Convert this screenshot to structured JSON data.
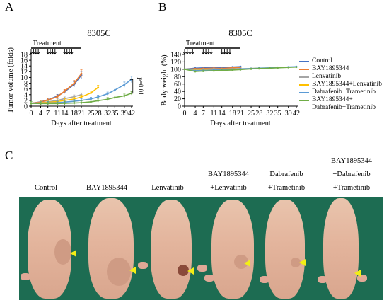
{
  "panels": {
    "a_letter": "A",
    "b_letter": "B",
    "c_letter": "C"
  },
  "chart_data": [
    {
      "type": "line",
      "title": "8305C",
      "xlabel": "Days after treatment",
      "ylabel": "Tumor volume (folds)",
      "ylim": [
        0,
        18
      ],
      "yticks": [
        0,
        2,
        4,
        6,
        8,
        10,
        12,
        14,
        16,
        18
      ],
      "xticks": [
        0,
        4,
        7,
        11,
        14,
        18,
        21,
        25,
        28,
        32,
        35,
        39,
        42
      ],
      "treatment_label": "Treatment",
      "treatment_days": [
        0,
        21
      ],
      "dosing_arrows": [
        "0",
        "1",
        "2",
        "3",
        "7",
        "8",
        "9",
        "10",
        "14",
        "15",
        "16",
        "17"
      ],
      "annotation": "p=0.01",
      "series": [
        {
          "name": "Control",
          "color": "#4472c4",
          "x": [
            0,
            4,
            7,
            11,
            14,
            18,
            21
          ],
          "y": [
            1.0,
            1.5,
            2.2,
            3.5,
            5.0,
            7.6,
            10.8
          ]
        },
        {
          "name": "BAY1895344",
          "color": "#ed7d31",
          "x": [
            0,
            4,
            7,
            11,
            14,
            18,
            21
          ],
          "y": [
            1.0,
            1.4,
            2.1,
            3.3,
            5.2,
            8.0,
            11.3
          ]
        },
        {
          "name": "Lenvatinib",
          "color": "#a5a5a5",
          "x": [
            0,
            4,
            7,
            11,
            14,
            18,
            21
          ],
          "y": [
            1.0,
            1.2,
            1.5,
            2.0,
            2.6,
            3.3,
            4.0
          ]
        },
        {
          "name": "BAY1895344+Lenvatinib",
          "color": "#ffc000",
          "x": [
            0,
            4,
            7,
            11,
            14,
            18,
            21,
            25,
            28
          ],
          "y": [
            1.0,
            1.1,
            1.3,
            1.6,
            2.0,
            2.5,
            3.2,
            4.6,
            6.5
          ]
        },
        {
          "name": "Dabrafenib+Trametinib",
          "color": "#5b9bd5",
          "x": [
            0,
            4,
            7,
            11,
            14,
            18,
            21,
            25,
            28,
            32,
            35,
            39,
            42
          ],
          "y": [
            1.0,
            1.0,
            1.1,
            1.2,
            1.4,
            1.7,
            2.0,
            2.5,
            3.2,
            4.3,
            5.6,
            7.5,
            9.3
          ]
        },
        {
          "name": "BAY1895344+ Dabrafenib+Trametinib",
          "color": "#70ad47",
          "x": [
            0,
            4,
            7,
            11,
            14,
            18,
            21,
            25,
            28,
            32,
            35,
            39,
            42
          ],
          "y": [
            1.0,
            0.9,
            0.9,
            0.9,
            1.0,
            1.1,
            1.2,
            1.5,
            1.9,
            2.4,
            3.0,
            3.6,
            4.5
          ]
        }
      ]
    },
    {
      "type": "line",
      "title": "8305C",
      "xlabel": "Days after treatment",
      "ylabel": "Body weight (%)",
      "ylim": [
        0,
        140
      ],
      "yticks": [
        0,
        20,
        40,
        60,
        80,
        100,
        120,
        140
      ],
      "xticks": [
        0,
        4,
        7,
        11,
        14,
        18,
        21,
        25,
        28,
        32,
        35,
        39,
        42
      ],
      "treatment_label": "Treatment",
      "treatment_days": [
        0,
        21
      ],
      "dosing_arrows": [
        "0",
        "1",
        "2",
        "3",
        "7",
        "8",
        "9",
        "10",
        "14",
        "15",
        "16",
        "17"
      ],
      "legend_position": "right",
      "series": [
        {
          "name": "Control",
          "color": "#4472c4",
          "x": [
            0,
            4,
            7,
            11,
            14,
            18,
            21
          ],
          "y": [
            100,
            103,
            104,
            105,
            104,
            106,
            107
          ]
        },
        {
          "name": "BAY1895344",
          "color": "#ed7d31",
          "x": [
            0,
            4,
            7,
            11,
            14,
            18,
            21
          ],
          "y": [
            100,
            101,
            102,
            103,
            102,
            104,
            105
          ]
        },
        {
          "name": "Lenvatinib",
          "color": "#a5a5a5",
          "x": [
            0,
            4,
            7,
            11,
            14,
            18,
            21
          ],
          "y": [
            100,
            99,
            100,
            101,
            100,
            101,
            102
          ]
        },
        {
          "name": "BAY1895344+Lenvatinib",
          "color": "#ffc000",
          "x": [
            0,
            4,
            7,
            11,
            14,
            18,
            21,
            25,
            28
          ],
          "y": [
            100,
            97,
            98,
            99,
            99,
            100,
            101,
            102,
            103
          ]
        },
        {
          "name": "Dabrafenib+Trametinib",
          "color": "#5b9bd5",
          "x": [
            0,
            4,
            7,
            11,
            14,
            18,
            21,
            25,
            28,
            32,
            35,
            39,
            42
          ],
          "y": [
            100,
            96,
            97,
            98,
            99,
            100,
            101,
            102,
            103,
            104,
            105,
            106,
            107
          ]
        },
        {
          "name": "BAY1895344+ Dabrafenib+Trametinib",
          "color": "#70ad47",
          "x": [
            0,
            4,
            7,
            11,
            14,
            18,
            21,
            25,
            28,
            32,
            35,
            39,
            42
          ],
          "y": [
            100,
            94,
            95,
            96,
            97,
            98,
            99,
            101,
            102,
            103,
            104,
            105,
            106
          ]
        }
      ]
    }
  ],
  "legend": {
    "items": [
      {
        "label": "Control",
        "color": "#4472c4"
      },
      {
        "label": "BAY1895344",
        "color": "#ed7d31"
      },
      {
        "label": "Lenvatinib",
        "color": "#a5a5a5"
      },
      {
        "label": "BAY1895344+Lenvatinib",
        "color": "#ffc000"
      },
      {
        "label": "Dabrafenib+Trametinib",
        "color": "#5b9bd5"
      },
      {
        "label": "BAY1895344+",
        "label2": "Dabrafenib+Trametinib",
        "color": "#70ad47"
      }
    ]
  },
  "photo_panel": {
    "labels": [
      {
        "lines": [
          "Control"
        ]
      },
      {
        "lines": [
          "BAY1895344"
        ]
      },
      {
        "lines": [
          "Lenvatinib"
        ]
      },
      {
        "lines": [
          "BAY1895344",
          "+Lenvatinib"
        ]
      },
      {
        "lines": [
          "Dabrafenib",
          "+Trametinib"
        ]
      },
      {
        "lines": [
          "BAY1895344",
          "+Dabrafenib",
          "+Trametinib"
        ]
      }
    ],
    "background_color": "#1d6c52",
    "arrow_color": "#f2ee16"
  }
}
